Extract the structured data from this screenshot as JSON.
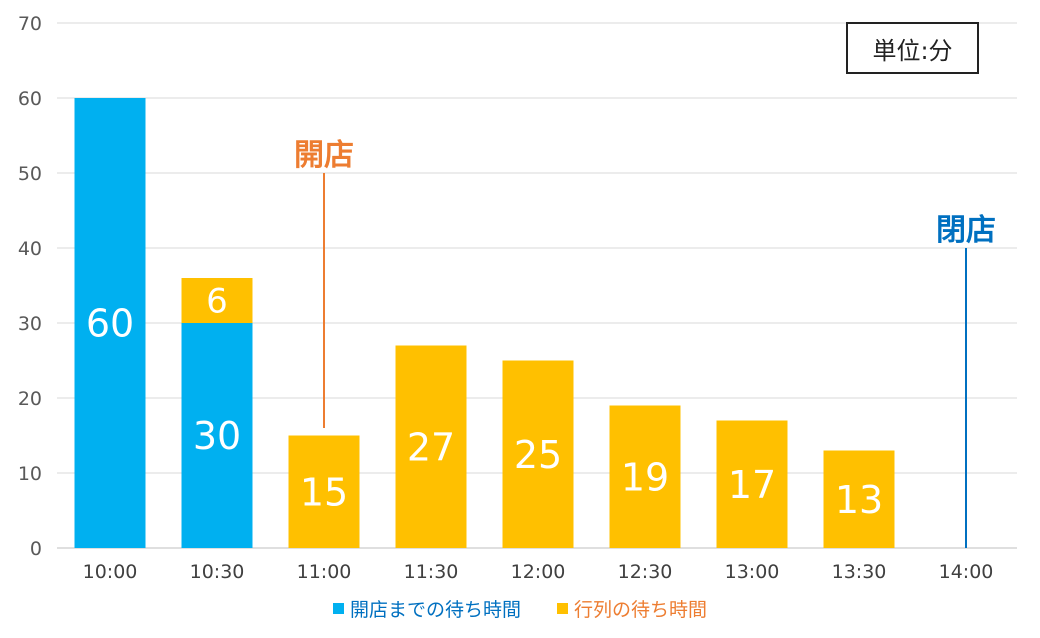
{
  "chart_data": {
    "type": "bar",
    "stacked": true,
    "categories": [
      "10:00",
      "10:30",
      "11:00",
      "11:30",
      "12:00",
      "12:30",
      "13:00",
      "13:30",
      "14:00"
    ],
    "series": [
      {
        "name": "開店までの待ち時間",
        "color": "#00B0F0",
        "values": [
          60,
          30,
          0,
          0,
          0,
          0,
          0,
          0,
          0
        ]
      },
      {
        "name": "行列の待ち時間",
        "color": "#FFC000",
        "values": [
          0,
          6,
          15,
          27,
          25,
          19,
          17,
          13,
          0
        ]
      }
    ],
    "ylim": [
      0,
      70
    ],
    "yticks": [
      0,
      10,
      20,
      30,
      40,
      50,
      60,
      70
    ],
    "grid": true,
    "legend_position": "bottom",
    "unit_label": "単位:分",
    "annotations": [
      {
        "text": "開店",
        "category": "11:00",
        "from_value": 16,
        "to_value": 50,
        "color": "#ED7D31"
      },
      {
        "text": "閉店",
        "category": "14:00",
        "from_value": 0,
        "to_value": 40,
        "color": "#0070C0"
      }
    ]
  }
}
